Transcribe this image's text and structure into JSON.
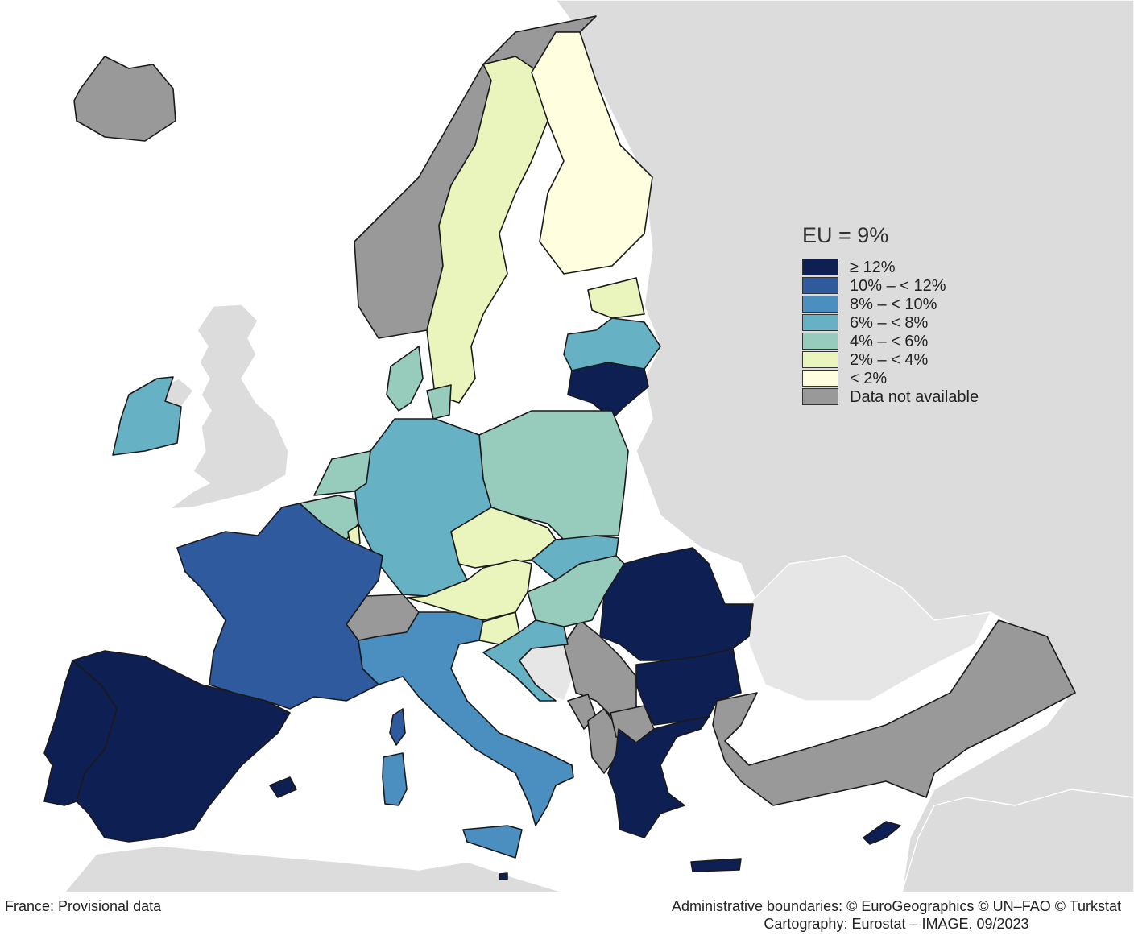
{
  "legend": {
    "title": "EU = 9%",
    "classes": [
      {
        "label": "≥ 12%",
        "color": "#0e1f54"
      },
      {
        "label": "10% – < 12%",
        "color": "#2f5a9e"
      },
      {
        "label": "8% – < 10%",
        "color": "#4a8fbf"
      },
      {
        "label": "6% – < 8%",
        "color": "#66b2c4"
      },
      {
        "label": "4% – < 6%",
        "color": "#97ccbc"
      },
      {
        "label": "2% – < 4%",
        "color": "#e9f5bd"
      },
      {
        "label": "< 2%",
        "color": "#ffffe0"
      },
      {
        "label": "Data not available",
        "color": "#999999"
      }
    ]
  },
  "footer": {
    "note": "France: Provisional data",
    "boundaries": "Administrative boundaries: © EuroGeographics © UN–FAO © Turkstat",
    "cartography": "Cartography: Eurostat – IMAGE, 09/2023"
  },
  "map": {
    "sea_color": "#ffffff",
    "non_eu_color": "#dcdcdc",
    "countries": [
      {
        "name": "Spain",
        "class": 0
      },
      {
        "name": "Portugal",
        "class": 0
      },
      {
        "name": "France",
        "class": 1
      },
      {
        "name": "Italy",
        "class": 2
      },
      {
        "name": "Germany",
        "class": 3
      },
      {
        "name": "Ireland",
        "class": 3
      },
      {
        "name": "Slovakia",
        "class": 3
      },
      {
        "name": "Croatia",
        "class": 3
      },
      {
        "name": "Latvia",
        "class": 3
      },
      {
        "name": "Poland",
        "class": 4
      },
      {
        "name": "Netherlands",
        "class": 4
      },
      {
        "name": "Belgium",
        "class": 4
      },
      {
        "name": "Denmark",
        "class": 4
      },
      {
        "name": "Hungary",
        "class": 4
      },
      {
        "name": "Sweden",
        "class": 5
      },
      {
        "name": "Czechia",
        "class": 5
      },
      {
        "name": "Austria",
        "class": 5
      },
      {
        "name": "Slovenia",
        "class": 5
      },
      {
        "name": "Estonia",
        "class": 5
      },
      {
        "name": "Luxembourg",
        "class": 5
      },
      {
        "name": "Finland",
        "class": 6
      },
      {
        "name": "Lithuania",
        "class": 0
      },
      {
        "name": "Romania",
        "class": 0
      },
      {
        "name": "Bulgaria",
        "class": 0
      },
      {
        "name": "Greece",
        "class": 0
      },
      {
        "name": "Cyprus",
        "class": 0
      },
      {
        "name": "Malta",
        "class": 0
      },
      {
        "name": "Norway",
        "class": 7
      },
      {
        "name": "Iceland",
        "class": 7
      },
      {
        "name": "Switzerland",
        "class": 7
      },
      {
        "name": "Serbia",
        "class": 7
      },
      {
        "name": "Montenegro",
        "class": 7
      },
      {
        "name": "North Macedonia",
        "class": 7
      },
      {
        "name": "Albania",
        "class": 7
      },
      {
        "name": "Türkiye",
        "class": 7
      }
    ]
  }
}
